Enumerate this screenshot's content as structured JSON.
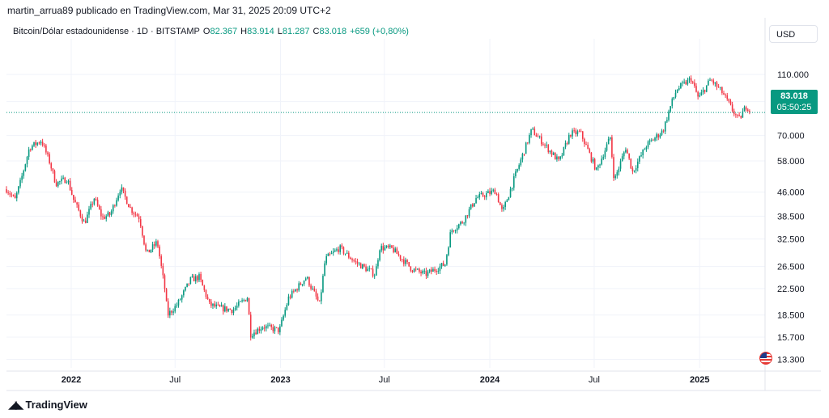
{
  "header": {
    "published": "martin_arrua89 publicado en TradingView.com, Mar 31, 2025 20:09 UTC+2"
  },
  "legend": {
    "symbol": "Bitcoin/Dólar estadounidense · 1D · BITSTAMP",
    "o_label": "O",
    "o_value": "82.367",
    "h_label": "H",
    "h_value": "83.914",
    "l_label": "L",
    "l_value": "81.287",
    "c_label": "C",
    "c_value": "83.018",
    "change": "+659 (+0,80%)"
  },
  "currency": "USD",
  "price_tag": {
    "price": "83.018",
    "countdown": "05:50:25"
  },
  "footer": {
    "brand": "TradingView"
  },
  "colors": {
    "up": "#089981",
    "down": "#f23645",
    "grid": "#f0f3fa",
    "text": "#131722"
  },
  "chart_data": {
    "type": "candlestick",
    "y_scale": "log",
    "ylim": [
      12500,
      135000
    ],
    "y_ticks": [
      {
        "value": 110000,
        "label": "110.000"
      },
      {
        "value": 90000,
        "label": "90.000"
      },
      {
        "value": 70000,
        "label": "70.000"
      },
      {
        "value": 58000,
        "label": "58.000"
      },
      {
        "value": 46000,
        "label": "46.000"
      },
      {
        "value": 38500,
        "label": "38.500"
      },
      {
        "value": 32500,
        "label": "32.500"
      },
      {
        "value": 26500,
        "label": "26.500"
      },
      {
        "value": 22500,
        "label": "22.500"
      },
      {
        "value": 18500,
        "label": "18.500"
      },
      {
        "value": 15700,
        "label": "15.700"
      },
      {
        "value": 13300,
        "label": "13.300"
      }
    ],
    "x_ticks": [
      {
        "date": "2022-01-01",
        "label": "2022"
      },
      {
        "date": "2022-07-01",
        "label": "Jul"
      },
      {
        "date": "2023-01-01",
        "label": "2023"
      },
      {
        "date": "2023-07-01",
        "label": "Jul"
      },
      {
        "date": "2024-01-01",
        "label": "2024"
      },
      {
        "date": "2024-07-01",
        "label": "Jul"
      },
      {
        "date": "2025-01-01",
        "label": "2025"
      }
    ],
    "x_range": [
      "2021-09-10",
      "2025-04-25"
    ],
    "last_price": 83018,
    "series": [
      {
        "date": "2021-09-10",
        "close": 47000
      },
      {
        "date": "2021-09-25",
        "close": 43500
      },
      {
        "date": "2021-10-05",
        "close": 50000
      },
      {
        "date": "2021-10-20",
        "close": 64000
      },
      {
        "date": "2021-11-10",
        "close": 67500
      },
      {
        "date": "2021-11-25",
        "close": 57000
      },
      {
        "date": "2021-12-05",
        "close": 49000
      },
      {
        "date": "2021-12-25",
        "close": 50800
      },
      {
        "date": "2022-01-05",
        "close": 43500
      },
      {
        "date": "2022-01-24",
        "close": 36500
      },
      {
        "date": "2022-02-10",
        "close": 44000
      },
      {
        "date": "2022-02-24",
        "close": 38000
      },
      {
        "date": "2022-03-10",
        "close": 39000
      },
      {
        "date": "2022-03-28",
        "close": 47500
      },
      {
        "date": "2022-04-15",
        "close": 40500
      },
      {
        "date": "2022-04-30",
        "close": 38000
      },
      {
        "date": "2022-05-12",
        "close": 29000
      },
      {
        "date": "2022-05-31",
        "close": 31800
      },
      {
        "date": "2022-06-13",
        "close": 22500
      },
      {
        "date": "2022-06-18",
        "close": 18500
      },
      {
        "date": "2022-07-05",
        "close": 20000
      },
      {
        "date": "2022-07-28",
        "close": 24000
      },
      {
        "date": "2022-08-12",
        "close": 24500
      },
      {
        "date": "2022-08-30",
        "close": 20000
      },
      {
        "date": "2022-09-15",
        "close": 19500
      },
      {
        "date": "2022-10-10",
        "close": 19200
      },
      {
        "date": "2022-11-05",
        "close": 21200
      },
      {
        "date": "2022-11-09",
        "close": 16000
      },
      {
        "date": "2022-12-01",
        "close": 17000
      },
      {
        "date": "2022-12-30",
        "close": 16500
      },
      {
        "date": "2023-01-15",
        "close": 21000
      },
      {
        "date": "2023-02-15",
        "close": 24500
      },
      {
        "date": "2023-03-10",
        "close": 20000
      },
      {
        "date": "2023-03-20",
        "close": 28000
      },
      {
        "date": "2023-04-14",
        "close": 30400
      },
      {
        "date": "2023-05-10",
        "close": 27500
      },
      {
        "date": "2023-06-15",
        "close": 25000
      },
      {
        "date": "2023-06-23",
        "close": 30500
      },
      {
        "date": "2023-07-15",
        "close": 30200
      },
      {
        "date": "2023-08-18",
        "close": 26000
      },
      {
        "date": "2023-09-11",
        "close": 25000
      },
      {
        "date": "2023-10-15",
        "close": 27000
      },
      {
        "date": "2023-10-25",
        "close": 34500
      },
      {
        "date": "2023-11-15",
        "close": 37000
      },
      {
        "date": "2023-12-08",
        "close": 44000
      },
      {
        "date": "2024-01-11",
        "close": 46500
      },
      {
        "date": "2024-01-23",
        "close": 39500
      },
      {
        "date": "2024-02-14",
        "close": 51800
      },
      {
        "date": "2024-03-14",
        "close": 73000
      },
      {
        "date": "2024-04-13",
        "close": 63000
      },
      {
        "date": "2024-05-01",
        "close": 57500
      },
      {
        "date": "2024-05-20",
        "close": 71000
      },
      {
        "date": "2024-06-07",
        "close": 71500
      },
      {
        "date": "2024-07-05",
        "close": 54000
      },
      {
        "date": "2024-07-29",
        "close": 69000
      },
      {
        "date": "2024-08-05",
        "close": 50000
      },
      {
        "date": "2024-08-25",
        "close": 64000
      },
      {
        "date": "2024-09-06",
        "close": 53500
      },
      {
        "date": "2024-09-30",
        "close": 65000
      },
      {
        "date": "2024-10-29",
        "close": 72500
      },
      {
        "date": "2024-11-12",
        "close": 88000
      },
      {
        "date": "2024-11-22",
        "close": 98500
      },
      {
        "date": "2024-12-17",
        "close": 106500
      },
      {
        "date": "2024-12-30",
        "close": 92000
      },
      {
        "date": "2025-01-20",
        "close": 106000
      },
      {
        "date": "2025-02-10",
        "close": 96000
      },
      {
        "date": "2025-02-28",
        "close": 84000
      },
      {
        "date": "2025-03-10",
        "close": 78500
      },
      {
        "date": "2025-03-24",
        "close": 87500
      },
      {
        "date": "2025-03-31",
        "close": 83018
      }
    ]
  }
}
